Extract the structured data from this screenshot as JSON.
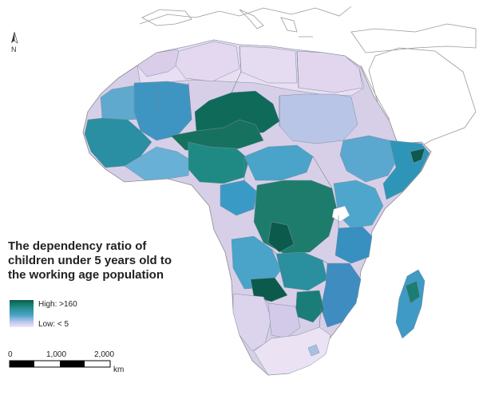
{
  "map": {
    "north_label": "N",
    "legend": {
      "title_lines": [
        "The dependency ratio of",
        "children under 5 years old to",
        "the working age population"
      ],
      "high_label": "High:  >160",
      "low_label": "Low:  < 5"
    },
    "scale": {
      "ticks": [
        "0",
        "1,000",
        "2,000"
      ],
      "unit": "km"
    },
    "colors": {
      "darkest": "#0b5a4b",
      "dark": "#1f8a84",
      "mid": "#4aa3c8",
      "light": "#9ec0e4",
      "pale": "#dcd4ec",
      "palest": "#efe6f4",
      "border": "#8a8a8a"
    }
  }
}
